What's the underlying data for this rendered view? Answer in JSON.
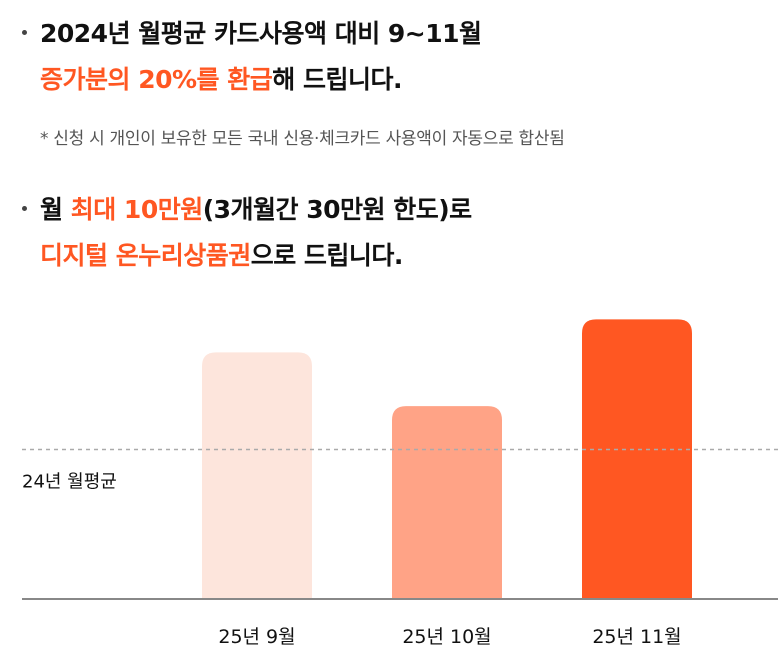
{
  "headline1": {
    "line1": "2024년 월평균 카드사용액 대비 9~11월",
    "line2_highlight": "증가분의 20%를 환급",
    "line2_rest": "해 드립니다."
  },
  "note": "* 신청 시 개인이 보유한 모든 국내 신용·체크카드 사용액이 자동으로 합산됨",
  "headline2": {
    "line1_pre": "월 ",
    "line1_highlight": "최대 10만원",
    "line1_rest": "(3개월간 30만원 한도)로",
    "line2_highlight": "디지털 온누리상품권",
    "line2_rest": "으로 드립니다."
  },
  "colors": {
    "accent": "#ff5722",
    "bar_light": "#fde5dc",
    "bar_mid": "#ffa386",
    "bar_strong": "#ff5722",
    "baseline": "#888888",
    "reference_line": "#aaaaaa"
  },
  "chart_data": {
    "type": "bar",
    "categories": [
      "25년 9월",
      "25년 10월",
      "25년 11월"
    ],
    "values": [
      1.65,
      1.29,
      1.87
    ],
    "bar_colors": [
      "#fde5dc",
      "#ffa386",
      "#ff5722"
    ],
    "reference_line": {
      "label": "24년 월평균",
      "value": 1.0
    },
    "ylim": [
      0,
      2.0
    ],
    "grid": false,
    "title": "",
    "xlabel": "",
    "ylabel": ""
  }
}
